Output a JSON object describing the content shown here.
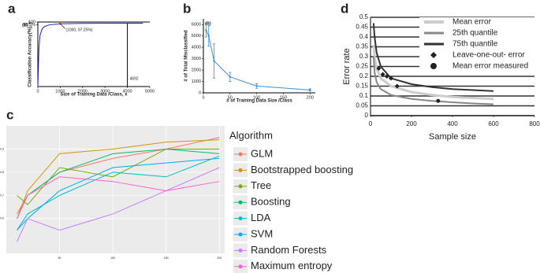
{
  "chart_data": [
    {
      "type": "line",
      "label": "a",
      "tag": "(B)",
      "y_label": "Classification Accuracy(%), y",
      "x_label": "Size of Training Data /Class, x",
      "annotations": [
        "(1000, 97.25%)",
        "4692"
      ],
      "x": [
        0,
        50,
        100,
        200,
        300,
        500,
        1000,
        2000,
        3000,
        4000,
        4692
      ],
      "values": [
        0,
        60,
        80,
        90,
        93,
        95.5,
        97.25,
        97.8,
        98,
        98.1,
        98.2
      ],
      "color": "#2222cc",
      "xlim": [
        0,
        5000
      ],
      "xticks": [
        0,
        1000,
        2000,
        3000,
        4000,
        5000
      ],
      "ylim": [
        0,
        100
      ],
      "yticks": [
        {
          "value": 95.5,
          "label": "95.5%"
        },
        100
      ],
      "grid": false
    },
    {
      "type": "line",
      "label": "b",
      "tag": "(B)",
      "y_label": "# of Total Misclassified",
      "x_label": "# of Training Data Size /Class",
      "x": [
        5,
        10,
        20,
        50,
        100,
        200
      ],
      "values": [
        5500,
        5000,
        2800,
        1400,
        600,
        250
      ],
      "errors": [
        600,
        900,
        1500,
        400,
        200,
        100
      ],
      "color": "#3a8ed6",
      "xlim": [
        0,
        210
      ],
      "xticks": [
        0,
        50,
        100,
        150,
        200
      ],
      "ylim": [
        0,
        6500
      ],
      "yticks": [
        0,
        1000,
        2000,
        3000,
        4000,
        5000,
        6000
      ],
      "grid": false
    },
    {
      "type": "line",
      "label": "c",
      "legend_title": "Algorithm",
      "legend": "right",
      "x": [
        10,
        20,
        50,
        100,
        150,
        200
      ],
      "series": [
        {
          "name": "GLM",
          "color": "#F8766D",
          "values": [
            0.62,
            0.7,
            0.8,
            0.86,
            0.9,
            0.95
          ]
        },
        {
          "name": "Bootstrapped boosting",
          "color": "#CD9600",
          "values": [
            0.6,
            0.72,
            0.88,
            0.9,
            0.93,
            0.94
          ]
        },
        {
          "name": "Tree",
          "color": "#7CAE00",
          "values": [
            0.7,
            0.66,
            0.82,
            0.78,
            0.9,
            0.9
          ]
        },
        {
          "name": "Boosting",
          "color": "#00BE67",
          "values": [
            0.6,
            0.7,
            0.8,
            0.88,
            0.9,
            0.88
          ]
        },
        {
          "name": "LDA",
          "color": "#00BFC4",
          "values": [
            0.55,
            0.62,
            0.7,
            0.8,
            0.78,
            0.87
          ]
        },
        {
          "name": "SVM",
          "color": "#00A9FF",
          "values": [
            0.55,
            0.6,
            0.72,
            0.82,
            0.84,
            0.86
          ]
        },
        {
          "name": "Random Forests",
          "color": "#C77CFF",
          "values": [
            0.5,
            0.6,
            0.55,
            0.62,
            0.72,
            0.82
          ]
        },
        {
          "name": "Maximum entropy",
          "color": "#FF61CC",
          "values": [
            0.6,
            0.7,
            0.78,
            0.76,
            0.72,
            0.76
          ]
        }
      ],
      "xlim": [
        0,
        205
      ],
      "xticks": [
        50,
        100,
        150,
        200
      ],
      "ylim": [
        0.45,
        1
      ],
      "yticks": [
        0.6,
        0.7,
        0.8,
        0.9
      ],
      "grid": true,
      "background": "#ebebeb"
    },
    {
      "type": "line",
      "label": "d",
      "legend": "top-right",
      "y_label": "Error rate",
      "x_label": "Sample size",
      "series": [
        {
          "name": "Mean error",
          "color": "#cccccc",
          "line_width": 3,
          "x": [
            15,
            20,
            30,
            50,
            100,
            200,
            300,
            400,
            500,
            600
          ],
          "values": [
            0.36,
            0.3,
            0.24,
            0.19,
            0.15,
            0.12,
            0.105,
            0.095,
            0.09,
            0.085
          ]
        },
        {
          "name": "25th quantile",
          "color": "#888888",
          "line_width": 2,
          "x": [
            15,
            20,
            30,
            50,
            100,
            200,
            300,
            400,
            500,
            600
          ],
          "values": [
            0.3,
            0.22,
            0.17,
            0.135,
            0.105,
            0.085,
            0.075,
            0.068,
            0.062,
            0.058
          ]
        },
        {
          "name": "75th quantile",
          "color": "#333333",
          "line_width": 2,
          "x": [
            15,
            20,
            30,
            50,
            100,
            200,
            300,
            400,
            500,
            600
          ],
          "values": [
            0.47,
            0.4,
            0.32,
            0.25,
            0.19,
            0.16,
            0.145,
            0.135,
            0.13,
            0.125
          ]
        },
        {
          "name": "Leave-one-out- error",
          "color": "#222222",
          "marker": "diamond",
          "x": [
            40,
            60,
            80,
            100,
            130
          ],
          "values": [
            0.24,
            0.21,
            0.2,
            0.19,
            0.15
          ]
        },
        {
          "name": "Mean error measured",
          "color": "#222222",
          "marker": "circle",
          "x": [
            330
          ],
          "values": [
            0.075
          ]
        }
      ],
      "xlim": [
        0,
        800
      ],
      "xticks": [
        0,
        200,
        400,
        600,
        800
      ],
      "ylim": [
        0,
        0.5
      ],
      "yticks": [
        0,
        0.05,
        0.1,
        0.15,
        0.2,
        0.25,
        0.3,
        0.35,
        0.4,
        0.45,
        0.5
      ],
      "grid": true
    }
  ]
}
